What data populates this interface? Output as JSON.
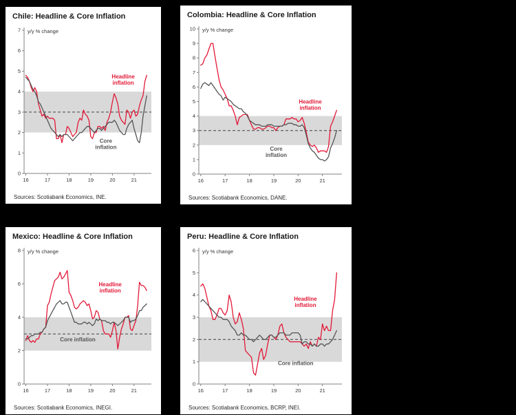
{
  "colors": {
    "headline": "#e21836",
    "core": "#545454",
    "band": "#d9d9d9",
    "dash": "#404040",
    "axis": "#808080",
    "text": "#333333"
  },
  "chart_data": [
    {
      "type": "line",
      "title": "Chile: Headline & Core Inflation",
      "ylabel": "y/y % change",
      "xlabel": "",
      "source": "Sources: Scotiabank Economics, INE.",
      "ylim": [
        0,
        7
      ],
      "yticks": [
        0,
        1,
        2,
        3,
        4,
        5,
        6,
        7
      ],
      "xlim": [
        15.92,
        21.8
      ],
      "xticks": [
        16,
        17,
        18,
        19,
        20,
        21
      ],
      "band": [
        2,
        4
      ],
      "dash_at": 3,
      "x_start": 16.0,
      "x_step": 0.0833333,
      "series": [
        {
          "name": "Headline inflation",
          "color": "headline",
          "values": [
            4.8,
            4.7,
            4.5,
            4.2,
            4.0,
            4.2,
            4.0,
            3.4,
            3.1,
            2.8,
            2.9,
            2.7,
            2.8,
            2.7,
            2.7,
            2.7,
            2.6,
            1.7,
            1.7,
            1.9,
            1.5,
            1.9,
            1.9,
            2.3,
            2.2,
            2.0,
            1.8,
            1.9,
            2.0,
            2.5,
            2.7,
            2.6,
            3.1,
            2.9,
            2.8,
            2.6,
            1.8,
            1.7,
            2.0,
            2.0,
            2.3,
            2.3,
            2.2,
            2.3,
            2.1,
            2.5,
            2.7,
            3.0,
            3.5,
            3.9,
            3.7,
            3.4,
            2.8,
            2.6,
            2.5,
            2.4,
            3.1,
            3.0,
            2.7,
            3.0,
            3.1,
            2.8,
            2.9,
            3.3,
            3.6,
            3.8,
            4.5,
            4.8
          ]
        },
        {
          "name": "Core inflation",
          "color": "core",
          "values": [
            4.7,
            4.6,
            4.5,
            4.3,
            4.1,
            4.0,
            3.8,
            3.5,
            3.4,
            3.2,
            3.0,
            2.8,
            2.6,
            2.4,
            2.2,
            2.1,
            2.0,
            1.9,
            1.8,
            1.9,
            1.8,
            1.9,
            1.9,
            1.9,
            1.8,
            1.7,
            1.6,
            1.7,
            1.8,
            1.9,
            2.0,
            2.0,
            2.1,
            2.2,
            2.3,
            2.3,
            2.2,
            2.1,
            2.0,
            2.1,
            2.2,
            2.2,
            2.1,
            2.2,
            2.3,
            2.4,
            2.5,
            2.5,
            2.5,
            2.6,
            2.5,
            2.3,
            2.1,
            2.0,
            1.9,
            1.9,
            2.2,
            2.4,
            2.5,
            2.6,
            2.2,
            1.9,
            1.6,
            1.5,
            2.0,
            2.8,
            3.3,
            3.8
          ]
        }
      ],
      "annotations": [
        {
          "lines": [
            "Headline",
            "inflation"
          ],
          "x": 20.5,
          "y": 4.65,
          "color": "headline"
        },
        {
          "lines": [
            "Core",
            "inflation"
          ],
          "x": 19.7,
          "y": 1.5,
          "color": "core"
        }
      ]
    },
    {
      "type": "line",
      "title": "Colombia: Headline & Core Inflation",
      "ylabel": "y/y % change",
      "xlabel": "",
      "source": "Sources: Scotiabank Economics, DANE.",
      "ylim": [
        0,
        10
      ],
      "yticks": [
        0,
        1,
        2,
        3,
        4,
        5,
        6,
        7,
        8,
        9,
        10
      ],
      "xlim": [
        15.92,
        21.8
      ],
      "xticks": [
        16,
        17,
        18,
        19,
        20,
        21
      ],
      "band": [
        2,
        4
      ],
      "dash_at": 3,
      "x_start": 16.0,
      "x_step": 0.0833333,
      "series": [
        {
          "name": "Headline inflation",
          "color": "headline",
          "values": [
            7.5,
            7.6,
            8.0,
            8.2,
            8.6,
            9.0,
            9.0,
            8.1,
            7.3,
            6.5,
            6.0,
            5.8,
            5.5,
            5.2,
            4.7,
            4.7,
            4.4,
            4.0,
            3.4,
            3.9,
            4.0,
            4.1,
            4.1,
            4.1,
            3.7,
            3.4,
            3.1,
            3.1,
            3.2,
            3.2,
            3.1,
            3.1,
            3.2,
            3.3,
            3.3,
            3.2,
            3.2,
            3.0,
            3.2,
            3.3,
            3.3,
            3.4,
            3.8,
            3.8,
            3.8,
            3.9,
            3.8,
            3.8,
            3.6,
            3.7,
            3.9,
            3.5,
            2.9,
            2.2,
            2.0,
            1.9,
            2.0,
            1.8,
            1.5,
            1.6,
            1.6,
            1.6,
            1.5,
            1.9,
            3.3,
            3.6,
            4.0,
            4.4
          ]
        },
        {
          "name": "Core inflation",
          "color": "core",
          "values": [
            5.9,
            6.2,
            6.3,
            6.2,
            6.1,
            6.3,
            6.1,
            5.9,
            5.7,
            5.5,
            5.4,
            5.1,
            5.3,
            5.2,
            5.1,
            5.0,
            4.8,
            4.7,
            4.6,
            4.5,
            4.5,
            4.3,
            4.2,
            4.0,
            3.7,
            3.6,
            3.5,
            3.4,
            3.4,
            3.4,
            3.3,
            3.3,
            3.3,
            3.4,
            3.4,
            3.4,
            3.3,
            3.3,
            3.3,
            3.3,
            3.3,
            3.4,
            3.4,
            3.5,
            3.5,
            3.5,
            3.4,
            3.4,
            3.3,
            3.3,
            3.4,
            3.2,
            2.7,
            2.1,
            1.8,
            1.6,
            1.5,
            1.3,
            1.1,
            1.0,
            1.0,
            0.9,
            1.0,
            1.2,
            1.8,
            2.1,
            2.5,
            3.0
          ]
        }
      ],
      "annotations": [
        {
          "lines": [
            "Headline",
            "inflation"
          ],
          "x": 20.5,
          "y": 4.85,
          "color": "headline"
        },
        {
          "lines": [
            "Core",
            "inflation"
          ],
          "x": 19.1,
          "y": 1.6,
          "color": "core"
        }
      ]
    },
    {
      "type": "line",
      "title": "Mexico: Headline & Core Inflation",
      "ylabel": "y/y % change",
      "xlabel": "",
      "source": "Sources: Scotiabank Economics, INEGI.",
      "ylim": [
        0,
        8
      ],
      "yticks": [
        0,
        2,
        4,
        6,
        8
      ],
      "xlim": [
        15.92,
        21.8
      ],
      "xticks": [
        16,
        17,
        18,
        19,
        20,
        21
      ],
      "band": [
        2,
        4
      ],
      "dash_at": 3,
      "x_start": 16.0,
      "x_step": 0.0833333,
      "series": [
        {
          "name": "Headline inflation",
          "color": "headline",
          "values": [
            2.6,
            2.9,
            2.6,
            2.5,
            2.6,
            2.5,
            2.7,
            2.7,
            3.0,
            3.1,
            3.3,
            3.4,
            4.7,
            4.9,
            5.4,
            5.8,
            6.2,
            6.3,
            6.4,
            6.7,
            6.3,
            6.4,
            6.6,
            6.8,
            5.5,
            5.3,
            5.0,
            4.6,
            4.5,
            4.6,
            4.8,
            4.9,
            5.0,
            4.9,
            4.7,
            4.8,
            4.4,
            3.9,
            4.0,
            4.4,
            4.3,
            3.9,
            3.8,
            3.2,
            3.0,
            3.0,
            3.0,
            2.8,
            3.2,
            3.7,
            3.2,
            2.1,
            2.8,
            3.3,
            3.6,
            4.0,
            4.0,
            4.1,
            3.3,
            3.2,
            3.5,
            3.8,
            4.7,
            6.1,
            5.9,
            5.9,
            5.8,
            5.6
          ]
        },
        {
          "name": "Core inflation",
          "color": "core",
          "values": [
            2.7,
            2.7,
            2.8,
            2.9,
            2.9,
            3.0,
            3.0,
            3.0,
            3.1,
            3.1,
            3.3,
            3.4,
            3.8,
            4.0,
            4.2,
            4.4,
            4.6,
            4.8,
            4.9,
            5.0,
            4.8,
            4.8,
            4.9,
            4.9,
            4.6,
            4.3,
            4.0,
            3.7,
            3.7,
            3.6,
            3.6,
            3.6,
            3.7,
            3.7,
            3.6,
            3.7,
            3.6,
            3.5,
            3.6,
            3.9,
            3.8,
            3.9,
            3.8,
            3.8,
            3.8,
            3.7,
            3.7,
            3.6,
            3.7,
            3.7,
            3.6,
            3.5,
            3.6,
            3.7,
            3.8,
            4.0,
            4.0,
            4.0,
            3.7,
            3.8,
            3.8,
            3.9,
            4.1,
            4.4,
            4.4,
            4.6,
            4.7,
            4.8
          ]
        }
      ],
      "annotations": [
        {
          "lines": [
            "Headline",
            "inflation"
          ],
          "x": 19.9,
          "y": 5.85,
          "color": "headline"
        },
        {
          "lines": [
            "Core inflation"
          ],
          "x": 18.4,
          "y": 2.55,
          "color": "core"
        }
      ]
    },
    {
      "type": "line",
      "title": "Peru: Headline & Core Inflation",
      "ylabel": "y/y % change",
      "xlabel": "",
      "source": "Sources: Scotiabank Economics, BCRP, INEI.",
      "ylim": [
        0,
        6
      ],
      "yticks": [
        0,
        1,
        2,
        3,
        4,
        5,
        6
      ],
      "xlim": [
        15.92,
        21.8
      ],
      "xticks": [
        16,
        17,
        18,
        19,
        20,
        21
      ],
      "band": [
        1,
        3
      ],
      "dash_at": 2,
      "x_start": 16.0,
      "x_step": 0.0833333,
      "series": [
        {
          "name": "Headline inflation",
          "color": "headline",
          "values": [
            4.4,
            4.5,
            4.3,
            3.9,
            3.5,
            3.3,
            2.9,
            2.9,
            3.1,
            3.4,
            3.4,
            3.2,
            3.1,
            3.3,
            4.0,
            3.7,
            3.0,
            2.7,
            2.8,
            3.2,
            2.9,
            2.5,
            1.5,
            1.4,
            1.3,
            1.2,
            0.5,
            0.4,
            0.9,
            1.4,
            1.6,
            1.1,
            1.3,
            1.8,
            2.2,
            2.2,
            2.1,
            2.0,
            2.2,
            2.6,
            2.7,
            2.3,
            2.1,
            2.0,
            1.9,
            1.9,
            1.9,
            1.9,
            1.9,
            1.9,
            1.8,
            1.7,
            1.8,
            1.6,
            1.9,
            1.7,
            1.8,
            1.7,
            2.1,
            2.0,
            2.7,
            2.4,
            2.6,
            2.4,
            2.4,
            3.3,
            3.8,
            5.0
          ]
        },
        {
          "name": "Core inflation",
          "color": "core",
          "values": [
            3.7,
            3.8,
            3.7,
            3.6,
            3.5,
            3.4,
            3.3,
            3.2,
            3.1,
            3.0,
            3.0,
            2.9,
            2.9,
            2.9,
            2.8,
            2.6,
            2.5,
            2.4,
            2.2,
            2.2,
            2.3,
            2.2,
            2.2,
            2.1,
            2.0,
            2.0,
            1.9,
            2.0,
            2.1,
            2.2,
            2.1,
            2.0,
            2.0,
            2.1,
            2.2,
            2.2,
            2.1,
            2.1,
            2.2,
            2.3,
            2.3,
            2.3,
            2.2,
            2.2,
            2.2,
            2.3,
            2.3,
            2.3,
            2.3,
            2.2,
            1.8,
            1.9,
            1.9,
            1.8,
            1.8,
            1.7,
            1.8,
            1.7,
            1.7,
            1.8,
            1.8,
            1.7,
            1.8,
            1.8,
            1.9,
            2.0,
            2.2,
            2.4
          ]
        }
      ],
      "annotations": [
        {
          "lines": [
            "Headline",
            "inflation"
          ],
          "x": 20.3,
          "y": 3.75,
          "color": "headline"
        },
        {
          "lines": [
            "Core inflation"
          ],
          "x": 19.9,
          "y": 0.85,
          "color": "core"
        }
      ]
    }
  ]
}
